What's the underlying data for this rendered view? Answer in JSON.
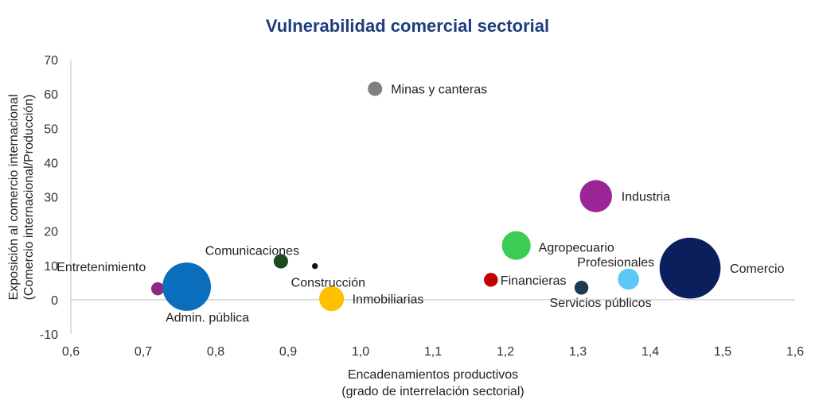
{
  "chart_data": {
    "type": "scatter",
    "title": "Vulnerabilidad comercial sectorial",
    "xlabel_line1": "Encadenamientos productivos",
    "xlabel_line2": "(grado de interrelación sectorial)",
    "ylabel_line1": "Exposición al comercio  internacional",
    "ylabel_line2": "(Comercio internacional/Producción)",
    "xlim": [
      0.6,
      1.6
    ],
    "ylim": [
      -10,
      70
    ],
    "x_ticks": [
      0.6,
      0.7,
      0.8,
      0.9,
      1.0,
      1.1,
      1.2,
      1.3,
      1.4,
      1.5,
      1.6
    ],
    "x_tick_labels": [
      "0,6",
      "0,7",
      "0,8",
      "0,9",
      "1,0",
      "1,1",
      "1,2",
      "1,3",
      "1,4",
      "1,5",
      "1,6"
    ],
    "y_ticks": [
      -10,
      0,
      10,
      20,
      30,
      40,
      50,
      60,
      70
    ],
    "y_tick_labels": [
      "-10",
      "0",
      "10",
      "20",
      "30",
      "40",
      "50",
      "60",
      "70"
    ],
    "points": [
      {
        "name": "Entretenimiento",
        "x": 0.72,
        "y": 3.2,
        "size": 0.25,
        "color": "#8b2a7e"
      },
      {
        "name": "Admin. pública",
        "x": 0.76,
        "y": 3.8,
        "size": 3.4,
        "color": "#0a6ebd"
      },
      {
        "name": "Comunicaciones",
        "x": 0.89,
        "y": 11.2,
        "size": 0.3,
        "color": "#1a4a1e"
      },
      {
        "name": "Construcción",
        "x": 0.937,
        "y": 9.8,
        "size": 0.05,
        "color": "#111111"
      },
      {
        "name": "Inmobiliarias",
        "x": 0.96,
        "y": 0.3,
        "size": 0.9,
        "color": "#ffc000"
      },
      {
        "name": "Minas y canteras",
        "x": 1.02,
        "y": 61.5,
        "size": 0.3,
        "color": "#7f7f7f"
      },
      {
        "name": "Financieras",
        "x": 1.18,
        "y": 5.8,
        "size": 0.28,
        "color": "#c00000"
      },
      {
        "name": "Agropecuario",
        "x": 1.215,
        "y": 15.8,
        "size": 1.2,
        "color": "#3dcc55"
      },
      {
        "name": "Servicios públicos",
        "x": 1.305,
        "y": 3.5,
        "size": 0.28,
        "color": "#1e3a4c"
      },
      {
        "name": "Industria",
        "x": 1.325,
        "y": 30.2,
        "size": 1.5,
        "color": "#9b2496"
      },
      {
        "name": "Profesionales",
        "x": 1.37,
        "y": 6.0,
        "size": 0.65,
        "color": "#5bc8f5"
      },
      {
        "name": "Comercio",
        "x": 1.455,
        "y": 9.2,
        "size": 5.4,
        "color": "#0a1f5c"
      }
    ],
    "grid": false,
    "zero_line": true
  }
}
